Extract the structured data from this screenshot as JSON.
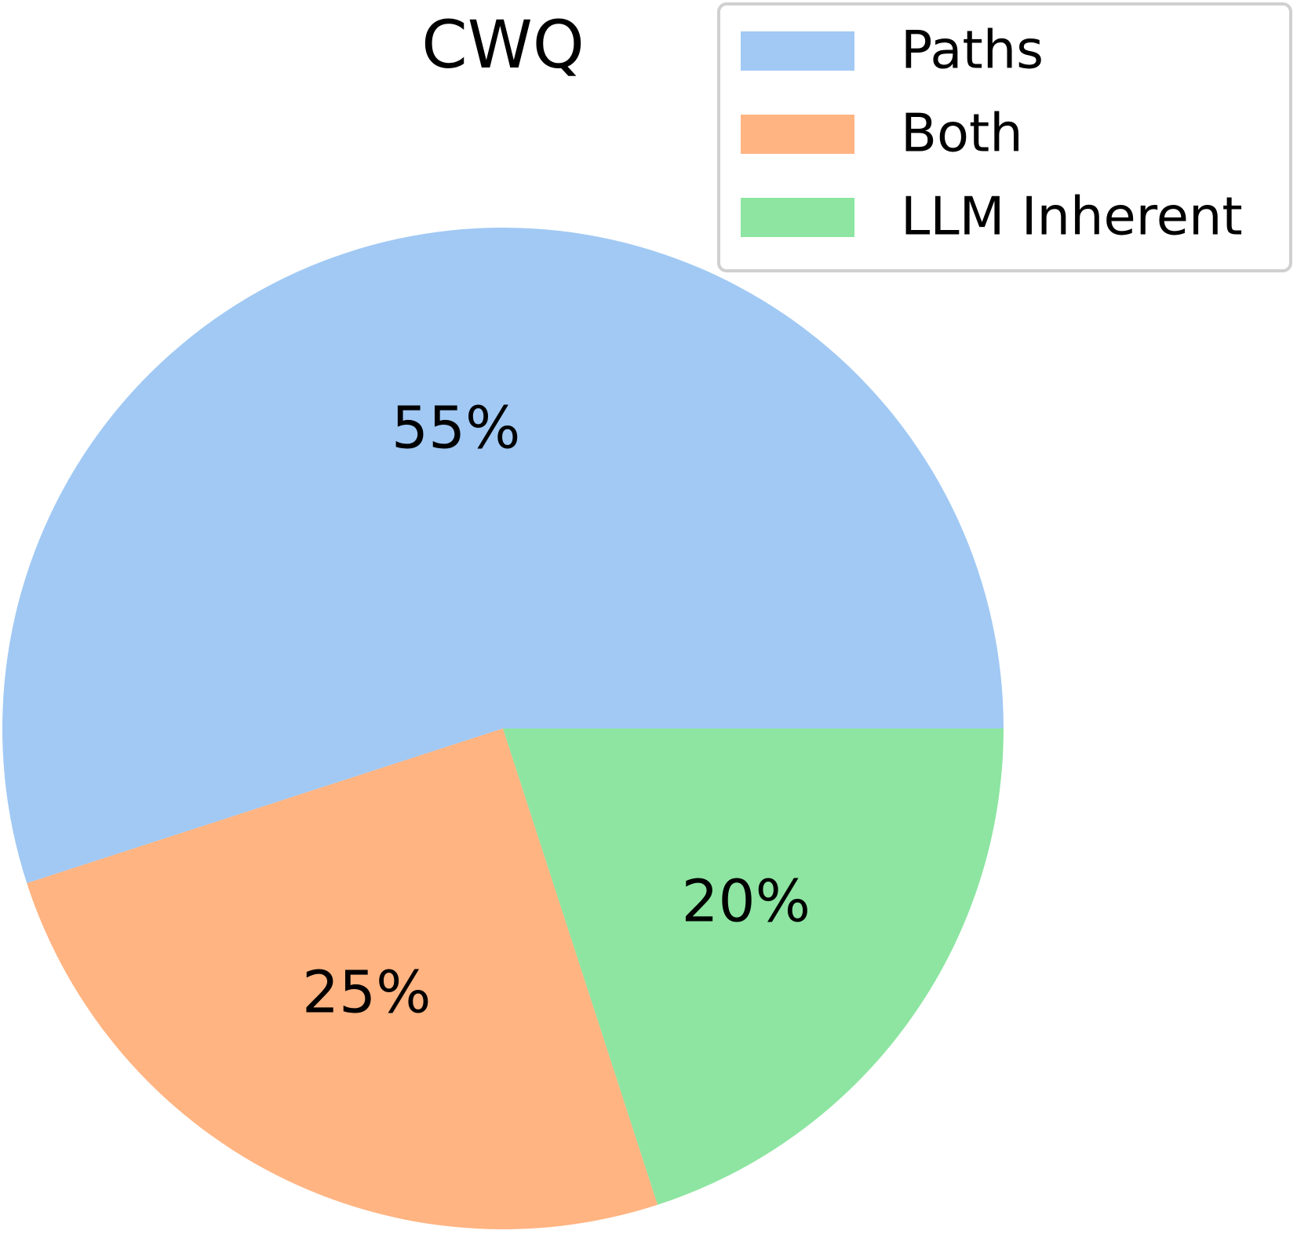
{
  "chart_data": {
    "type": "pie",
    "title": "CWQ",
    "categories": [
      "Paths",
      "Both",
      "LLM Inherent"
    ],
    "values": [
      55,
      25,
      20
    ],
    "value_labels": [
      "55%",
      "25%",
      "20%"
    ],
    "colors": [
      "#a1c9f4",
      "#ffb482",
      "#8de5a1"
    ],
    "start_angle": 0,
    "counterclockwise": true,
    "legend": "upper right"
  }
}
